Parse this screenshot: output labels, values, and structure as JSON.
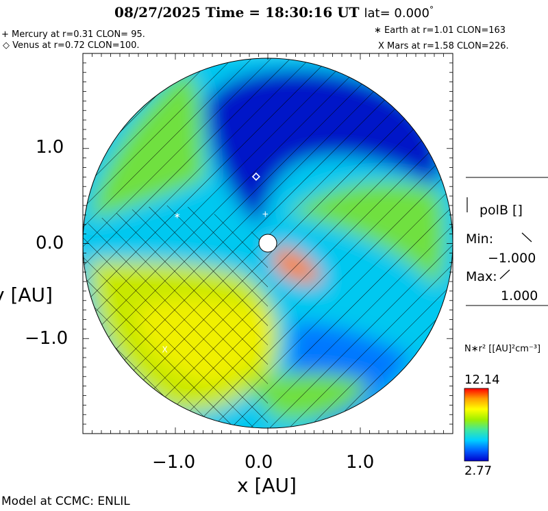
{
  "title": {
    "main": "08/27/2025 Time = 18:30:16 UT",
    "lat": "lat= 0.000",
    "degree": "°"
  },
  "planets": {
    "mercury": "+ Mercury at r=0.31 CLON= 95.",
    "venus": "◇ Venus at r=0.72 CLON=100.",
    "earth": "∗ Earth at  r=1.01 CLON=163",
    "mars": "X Mars at r=1.58 CLON=226."
  },
  "chart_data": {
    "type": "heatmap",
    "xlabel": "x [AU]",
    "ylabel": "y [AU]",
    "xlim": [
      -2.0,
      2.0
    ],
    "ylim": [
      -2.0,
      2.0
    ],
    "xticks": [
      "−1.0",
      "0.0",
      "1.0"
    ],
    "yticks": [
      "1.0",
      "0.0",
      "−1.0"
    ],
    "colorbar": {
      "label": "N∗r² [[AU]²cm⁻³]",
      "max": "12.14",
      "min": "2.77",
      "colors": [
        "#0000cc",
        "#0060ff",
        "#00d0ff",
        "#40e8a0",
        "#a0f000",
        "#ffff00",
        "#ffa000",
        "#ff0000"
      ]
    },
    "overlay": {
      "label": "polB []",
      "min_label": "Min:",
      "min_value": "−1.000",
      "max_label": "Max:",
      "max_value": "1.000"
    },
    "markers": [
      {
        "name": "Mercury",
        "symbol": "+",
        "r": 0.31,
        "clon": 95
      },
      {
        "name": "Venus",
        "symbol": "◇",
        "r": 0.72,
        "clon": 100
      },
      {
        "name": "Earth",
        "symbol": "∗",
        "r": 1.01,
        "clon": 163
      },
      {
        "name": "Mars",
        "symbol": "X",
        "r": 1.58,
        "clon": 226
      }
    ],
    "palette": {
      "dark_blue": "#0018c8",
      "blue": "#0078ff",
      "cyan": "#00c8f0",
      "green": "#70e040",
      "yellow_green": "#c8e800",
      "yellow": "#f0f000",
      "orange": "#ff8000",
      "red": "#e00000"
    }
  },
  "footer": "Model at CCMC: ENLIL"
}
